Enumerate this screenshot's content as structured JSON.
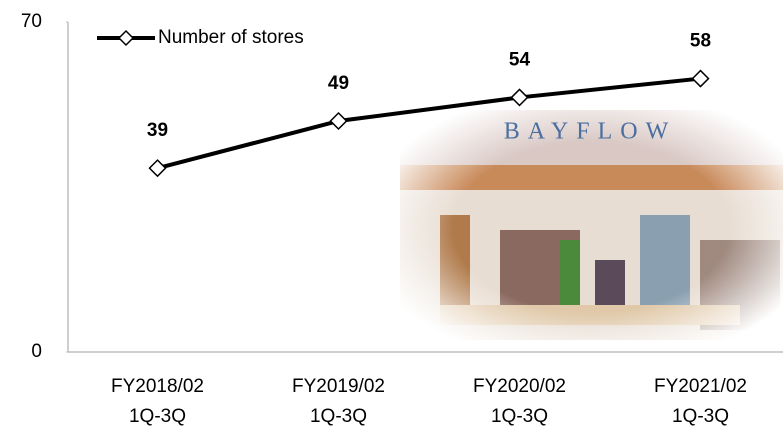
{
  "chart_data": {
    "type": "line",
    "categories": [
      "FY2018/02\n1Q-3Q",
      "FY2019/02\n1Q-3Q",
      "FY2020/02\n1Q-3Q",
      "FY2021/02\n1Q-3Q"
    ],
    "series": [
      {
        "name": "Number of stores",
        "color": "#000000",
        "values": [
          39,
          49,
          54,
          58
        ]
      }
    ],
    "ylim": [
      0,
      70
    ],
    "yticks": [
      0,
      70
    ],
    "grid": false,
    "legend": "top-left",
    "annotation": "BAYFLOW"
  }
}
